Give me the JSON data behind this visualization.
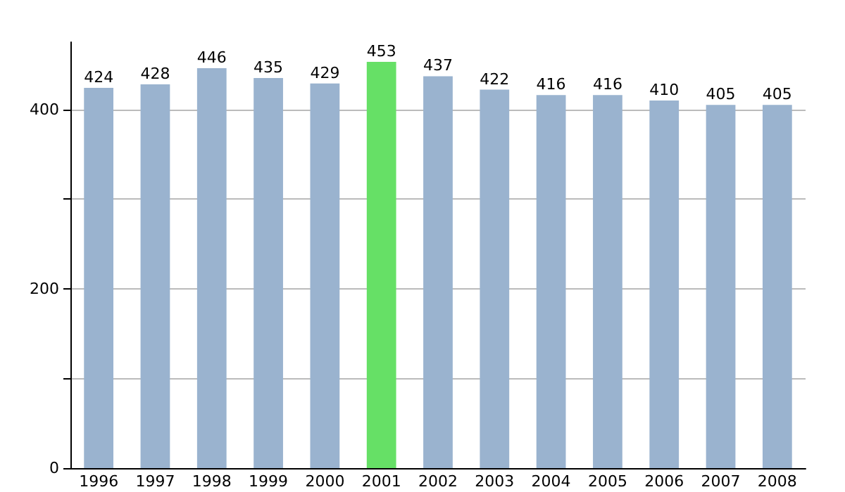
{
  "chart_data": {
    "type": "bar",
    "categories": [
      "1996",
      "1997",
      "1998",
      "1999",
      "2000",
      "2001",
      "2002",
      "2003",
      "2004",
      "2005",
      "2006",
      "2007",
      "2008"
    ],
    "values": [
      424,
      428,
      446,
      435,
      429,
      453,
      437,
      422,
      416,
      416,
      410,
      405,
      405
    ],
    "colors": [
      "#9ab3cf",
      "#9ab3cf",
      "#9ab3cf",
      "#9ab3cf",
      "#9ab3cf",
      "#66e066",
      "#9ab3cf",
      "#9ab3cf",
      "#9ab3cf",
      "#9ab3cf",
      "#9ab3cf",
      "#9ab3cf",
      "#9ab3cf"
    ],
    "ylim": [
      0,
      475
    ],
    "yticks": [
      0,
      {
        "value": 100,
        "label": null
      },
      200,
      {
        "value": 300,
        "label": null
      },
      400
    ],
    "grid": "y",
    "data_labels": true
  }
}
